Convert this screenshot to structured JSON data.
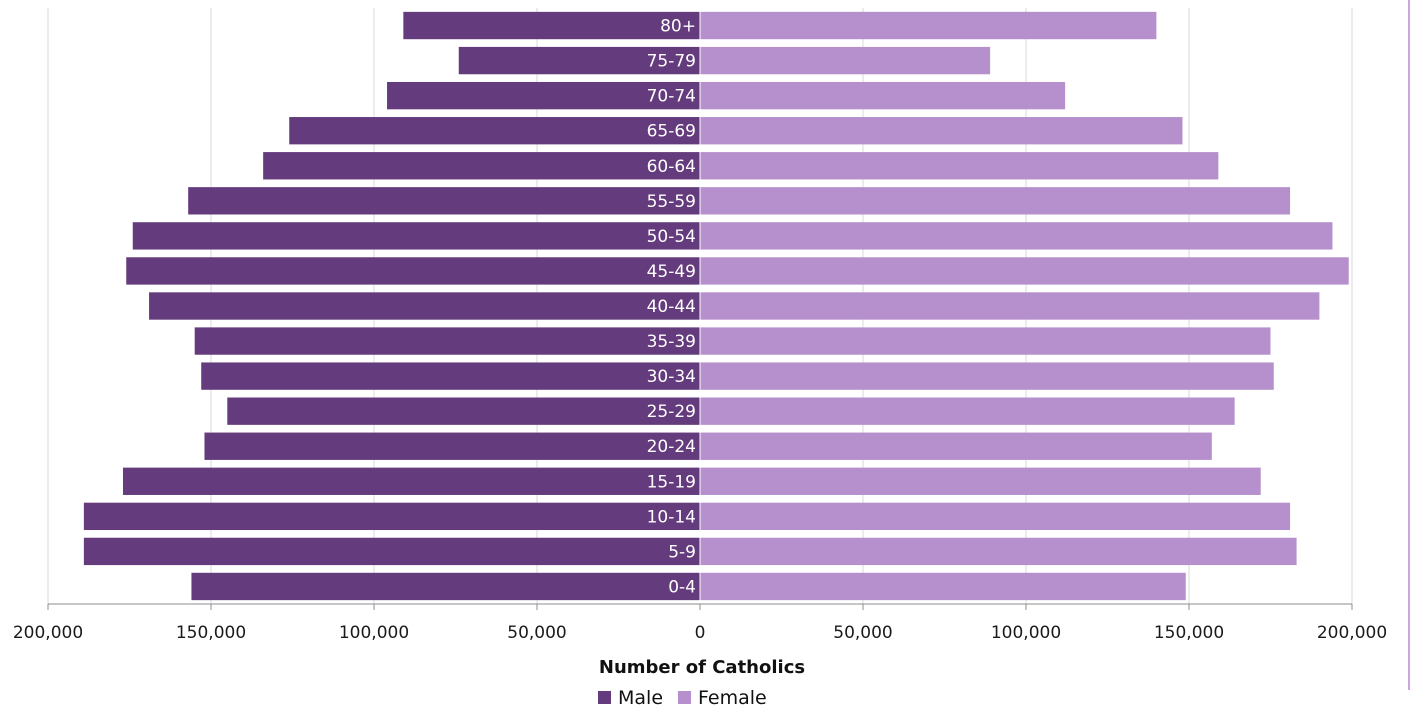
{
  "chart_data": {
    "type": "bar",
    "orientation": "horizontal-population-pyramid",
    "title": "",
    "xlabel": "Number of Catholics",
    "ylabel": "",
    "xlim": [
      -200000,
      200000
    ],
    "x_ticks": [
      -200000,
      -150000,
      -100000,
      -50000,
      0,
      50000,
      100000,
      150000,
      200000
    ],
    "x_tick_labels": [
      "200,000",
      "150,000",
      "100,000",
      "50,000",
      "0",
      "50,000",
      "100,000",
      "150,000",
      "200,000"
    ],
    "categories": [
      "0-4",
      "5-9",
      "10-14",
      "15-19",
      "20-24",
      "25-29",
      "30-34",
      "35-39",
      "40-44",
      "45-49",
      "50-54",
      "55-59",
      "60-64",
      "65-69",
      "70-74",
      "75-79",
      "80+"
    ],
    "series": [
      {
        "name": "Male",
        "color": "#643b7c",
        "values": [
          156000,
          189000,
          189000,
          177000,
          152000,
          145000,
          153000,
          155000,
          169000,
          176000,
          174000,
          157000,
          134000,
          126000,
          96000,
          74000,
          91000
        ]
      },
      {
        "name": "Female",
        "color": "#b690cc",
        "values": [
          149000,
          183000,
          181000,
          172000,
          157000,
          164000,
          176000,
          175000,
          190000,
          199000,
          194000,
          181000,
          159000,
          148000,
          112000,
          89000,
          140000
        ]
      }
    ],
    "grid": true,
    "legend_position": "bottom"
  },
  "colors": {
    "gridline": "#d9d9d9",
    "axis": "#8c8c8c",
    "accent_border": "#c9a6dc"
  }
}
